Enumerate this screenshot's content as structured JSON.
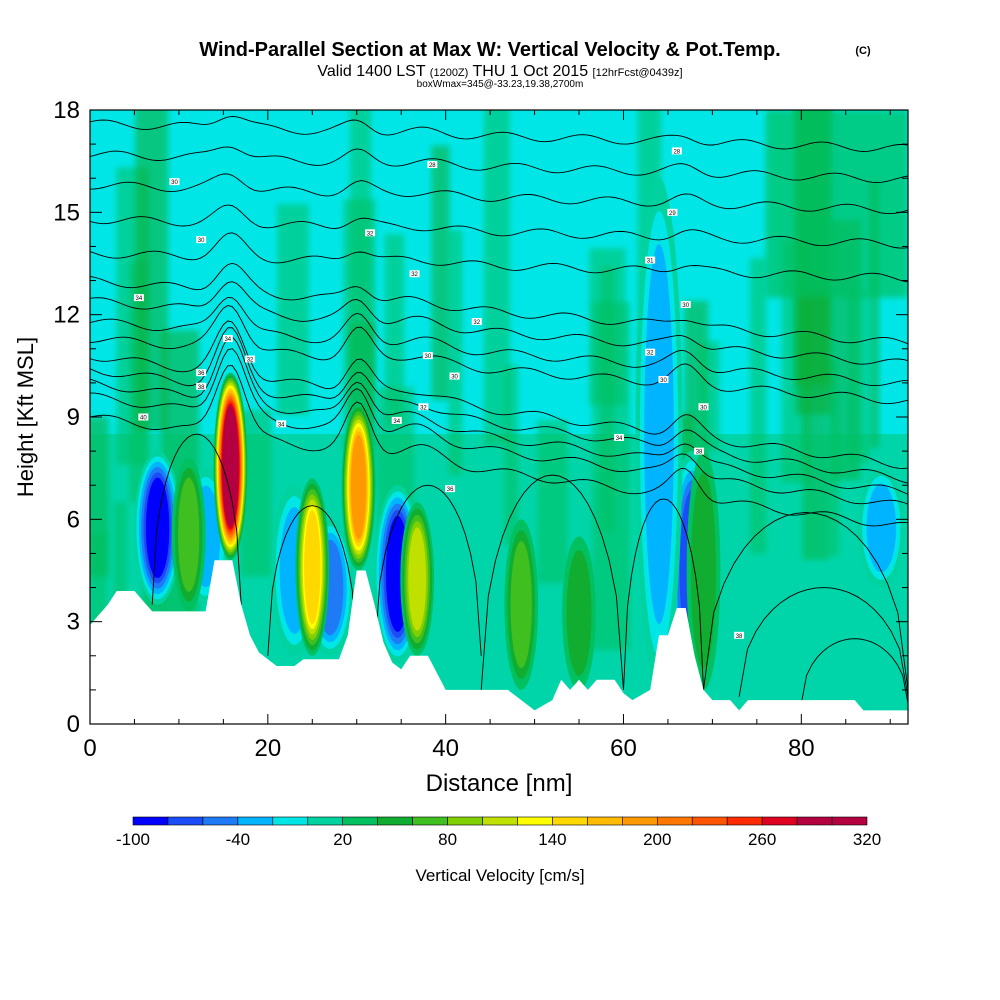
{
  "chart_data": {
    "type": "heatmap",
    "title": "Wind-Parallel Section at Max W: Vertical Velocity & Pot.Temp.",
    "title_suffix": "(C)",
    "subtitle_parts": [
      "Valid 1400 LST",
      "(1200Z)",
      "THU 1 Oct 2015",
      "[12hrFcst@0439z]"
    ],
    "subtitle2": "boxWmax=345@-33.23,19.38,2700m",
    "xlabel": "Distance [nm]",
    "ylabel": "Height [Kft MSL]",
    "xlim": [
      0,
      92
    ],
    "ylim": [
      0,
      18
    ],
    "xticks": [
      0,
      20,
      40,
      60,
      80
    ],
    "yticks": [
      0,
      3,
      6,
      9,
      12,
      15,
      18
    ],
    "colorbar": {
      "label": "Vertical Velocity [cm/s]",
      "min": -100,
      "max": 320,
      "step": 20,
      "tick_labels": [
        "-100",
        "-40",
        "20",
        "80",
        "140",
        "200",
        "260",
        "320"
      ],
      "tick_values": [
        -100,
        -40,
        20,
        80,
        140,
        200,
        260,
        320
      ],
      "colors": [
        "#0000ff",
        "#1a4df7",
        "#1e7af5",
        "#00b4ff",
        "#00e6e6",
        "#00d2a0",
        "#00c060",
        "#10ad30",
        "#40c020",
        "#80d000",
        "#c0e000",
        "#ffff00",
        "#ffd800",
        "#ffbb00",
        "#ff9900",
        "#ff7700",
        "#ff5500",
        "#ff2a00",
        "#e00020",
        "#b40040",
        "#b40040"
      ]
    },
    "terrain": [
      [
        0,
        2.9
      ],
      [
        1,
        3.2
      ],
      [
        2,
        3.5
      ],
      [
        3,
        3.9
      ],
      [
        5,
        3.9
      ],
      [
        6,
        3.6
      ],
      [
        7,
        3.3
      ],
      [
        10,
        3.3
      ],
      [
        13,
        3.3
      ],
      [
        14,
        4.8
      ],
      [
        16,
        4.8
      ],
      [
        17,
        3.5
      ],
      [
        18,
        2.6
      ],
      [
        19,
        2.1
      ],
      [
        20,
        1.9
      ],
      [
        21,
        1.7
      ],
      [
        23,
        1.7
      ],
      [
        24,
        1.9
      ],
      [
        26,
        1.9
      ],
      [
        28,
        1.9
      ],
      [
        29,
        2.6
      ],
      [
        30,
        4.5
      ],
      [
        31,
        4.5
      ],
      [
        32,
        3.5
      ],
      [
        33,
        2.4
      ],
      [
        34,
        1.8
      ],
      [
        35,
        1.6
      ],
      [
        36,
        2.0
      ],
      [
        38,
        2.0
      ],
      [
        39,
        1.5
      ],
      [
        40,
        1.0
      ],
      [
        44,
        1.0
      ],
      [
        47,
        1.0
      ],
      [
        49,
        0.6
      ],
      [
        50,
        0.4
      ],
      [
        52,
        0.7
      ],
      [
        53,
        1.3
      ],
      [
        54,
        1.0
      ],
      [
        55,
        1.3
      ],
      [
        56,
        1.0
      ],
      [
        57,
        1.3
      ],
      [
        59,
        1.3
      ],
      [
        60,
        0.9
      ],
      [
        61,
        0.7
      ],
      [
        63,
        1.0
      ],
      [
        64,
        2.6
      ],
      [
        65,
        2.6
      ],
      [
        66,
        3.4
      ],
      [
        67,
        3.4
      ],
      [
        68,
        2.0
      ],
      [
        69,
        1.0
      ],
      [
        70,
        0.7
      ],
      [
        72,
        0.7
      ],
      [
        73,
        0.4
      ],
      [
        74,
        0.7
      ],
      [
        86,
        0.7
      ],
      [
        87,
        0.4
      ],
      [
        92,
        0.4
      ]
    ],
    "updrafts": [
      {
        "x": 15.8,
        "bottom": 4.8,
        "top": 10.3,
        "peak": 345
      },
      {
        "x": 30.2,
        "bottom": 4.5,
        "top": 9.4,
        "peak": 200
      },
      {
        "x": 25.0,
        "bottom": 2.0,
        "top": 7.2,
        "peak": 150
      },
      {
        "x": 36.8,
        "bottom": 2.0,
        "top": 6.5,
        "peak": 110
      },
      {
        "x": 11.1,
        "bottom": 3.3,
        "top": 7.8,
        "peak": 80
      },
      {
        "x": 48.5,
        "bottom": 1.0,
        "top": 6.0,
        "peak": 70
      },
      {
        "x": 55.0,
        "bottom": 1.0,
        "top": 5.5,
        "peak": 50
      },
      {
        "x": 69.0,
        "bottom": 1.0,
        "top": 8.0,
        "peak": 60
      }
    ],
    "downdrafts": [
      {
        "x": 7.6,
        "bottom": 3.5,
        "top": 8.0,
        "peak": -100
      },
      {
        "x": 34.6,
        "bottom": 1.8,
        "top": 7.0,
        "peak": -100
      },
      {
        "x": 13.0,
        "bottom": 3.5,
        "top": 7.5,
        "peak": -40
      },
      {
        "x": 27.0,
        "bottom": 2.0,
        "top": 6.0,
        "peak": -50
      },
      {
        "x": 67.7,
        "bottom": 1.0,
        "top": 8.0,
        "peak": -80
      },
      {
        "x": 23.0,
        "bottom": 2.0,
        "top": 7.0,
        "peak": -30
      },
      {
        "x": 64.0,
        "bottom": 1.0,
        "top": 16.0,
        "peak": -40
      },
      {
        "x": 89.0,
        "bottom": 4.0,
        "top": 7.5,
        "peak": -40
      }
    ],
    "theta_contour_heights_at_x0": [
      9.0,
      9.6,
      10.0,
      10.4,
      10.8,
      11.3,
      11.8,
      12.4,
      13.0,
      13.8,
      14.8,
      15.8,
      16.7,
      17.6
    ],
    "contour_labels": [
      {
        "x": 6,
        "y": 9.0,
        "text": "40"
      },
      {
        "x": 12.5,
        "y": 9.9,
        "text": "38"
      },
      {
        "x": 12.5,
        "y": 10.3,
        "text": "36"
      },
      {
        "x": 15.5,
        "y": 11.3,
        "text": "34"
      },
      {
        "x": 18,
        "y": 10.7,
        "text": "32"
      },
      {
        "x": 21.5,
        "y": 8.8,
        "text": "34"
      },
      {
        "x": 5.5,
        "y": 12.5,
        "text": "34"
      },
      {
        "x": 12.5,
        "y": 14.2,
        "text": "30"
      },
      {
        "x": 9.5,
        "y": 15.9,
        "text": "30"
      },
      {
        "x": 31.5,
        "y": 14.4,
        "text": "32"
      },
      {
        "x": 38.5,
        "y": 16.4,
        "text": "28"
      },
      {
        "x": 36.5,
        "y": 13.2,
        "text": "32"
      },
      {
        "x": 43.5,
        "y": 11.8,
        "text": "32"
      },
      {
        "x": 38,
        "y": 10.8,
        "text": "30"
      },
      {
        "x": 41,
        "y": 10.2,
        "text": "30"
      },
      {
        "x": 37.5,
        "y": 9.3,
        "text": "32"
      },
      {
        "x": 34.5,
        "y": 8.9,
        "text": "34"
      },
      {
        "x": 40.5,
        "y": 6.9,
        "text": "36"
      },
      {
        "x": 59.5,
        "y": 8.4,
        "text": "34"
      },
      {
        "x": 63,
        "y": 10.9,
        "text": "32"
      },
      {
        "x": 64.5,
        "y": 10.1,
        "text": "30"
      },
      {
        "x": 67,
        "y": 12.3,
        "text": "30"
      },
      {
        "x": 63,
        "y": 13.6,
        "text": "31"
      },
      {
        "x": 65.5,
        "y": 15.0,
        "text": "29"
      },
      {
        "x": 66,
        "y": 16.8,
        "text": "28"
      },
      {
        "x": 69,
        "y": 9.3,
        "text": "30"
      },
      {
        "x": 68.5,
        "y": 8.0,
        "text": "38"
      },
      {
        "x": 73,
        "y": 2.6,
        "text": "38"
      }
    ]
  }
}
